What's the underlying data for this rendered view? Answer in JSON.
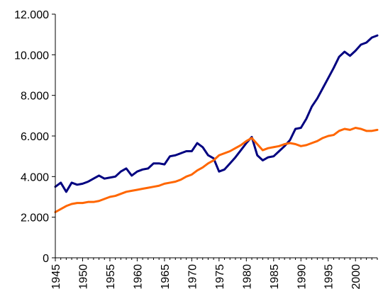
{
  "chart_data": {
    "type": "line",
    "title": "",
    "xlabel": "",
    "ylabel": "",
    "xlim": [
      1945,
      2004
    ],
    "ylim": [
      0,
      12000
    ],
    "grid": false,
    "legend": "none",
    "y_ticks": [
      0,
      2000,
      4000,
      6000,
      8000,
      10000,
      12000
    ],
    "y_tick_labels": [
      "0",
      "2.000",
      "4.000",
      "6.000",
      "8.000",
      "10.000",
      "12.000"
    ],
    "x_ticks": [
      1945,
      1950,
      1955,
      1960,
      1965,
      1970,
      1975,
      1980,
      1985,
      1990,
      1995,
      2000
    ],
    "x_tick_labels": [
      "1945",
      "1950",
      "1955",
      "1960",
      "1965",
      "1970",
      "1975",
      "1980",
      "1985",
      "1990",
      "1995",
      "2000"
    ],
    "x": [
      1945,
      1946,
      1947,
      1948,
      1949,
      1950,
      1951,
      1952,
      1953,
      1954,
      1955,
      1956,
      1957,
      1958,
      1959,
      1960,
      1961,
      1962,
      1963,
      1964,
      1965,
      1966,
      1967,
      1968,
      1969,
      1970,
      1971,
      1972,
      1973,
      1974,
      1975,
      1976,
      1977,
      1978,
      1979,
      1980,
      1981,
      1982,
      1983,
      1984,
      1985,
      1986,
      1987,
      1988,
      1989,
      1990,
      1991,
      1992,
      1993,
      1994,
      1995,
      1996,
      1997,
      1998,
      1999,
      2000,
      2001,
      2002,
      2003,
      2004
    ],
    "series": [
      {
        "color": "#000080",
        "values": [
          3500,
          3700,
          3250,
          3700,
          3600,
          3650,
          3750,
          3900,
          4050,
          3900,
          3950,
          4000,
          4250,
          4400,
          4050,
          4250,
          4350,
          4400,
          4650,
          4650,
          4600,
          5000,
          5050,
          5150,
          5250,
          5250,
          5650,
          5450,
          5050,
          4900,
          4250,
          4350,
          4650,
          4950,
          5300,
          5650,
          5950,
          5050,
          4800,
          4950,
          5000,
          5250,
          5500,
          5800,
          6350,
          6400,
          6850,
          7450,
          7850,
          8350,
          8850,
          9350,
          9900,
          10150,
          9950,
          10200,
          10500,
          10600,
          10850,
          10950
        ]
      },
      {
        "color": "#ff6600",
        "values": [
          2250,
          2400,
          2550,
          2650,
          2700,
          2700,
          2750,
          2750,
          2800,
          2900,
          3000,
          3050,
          3150,
          3250,
          3300,
          3350,
          3400,
          3450,
          3500,
          3550,
          3650,
          3700,
          3750,
          3850,
          4000,
          4100,
          4300,
          4450,
          4650,
          4800,
          5050,
          5150,
          5250,
          5400,
          5550,
          5750,
          5900,
          5600,
          5300,
          5400,
          5450,
          5500,
          5600,
          5650,
          5600,
          5500,
          5550,
          5650,
          5750,
          5900,
          6000,
          6050,
          6250,
          6350,
          6300,
          6400,
          6350,
          6250,
          6250,
          6300
        ]
      }
    ]
  }
}
